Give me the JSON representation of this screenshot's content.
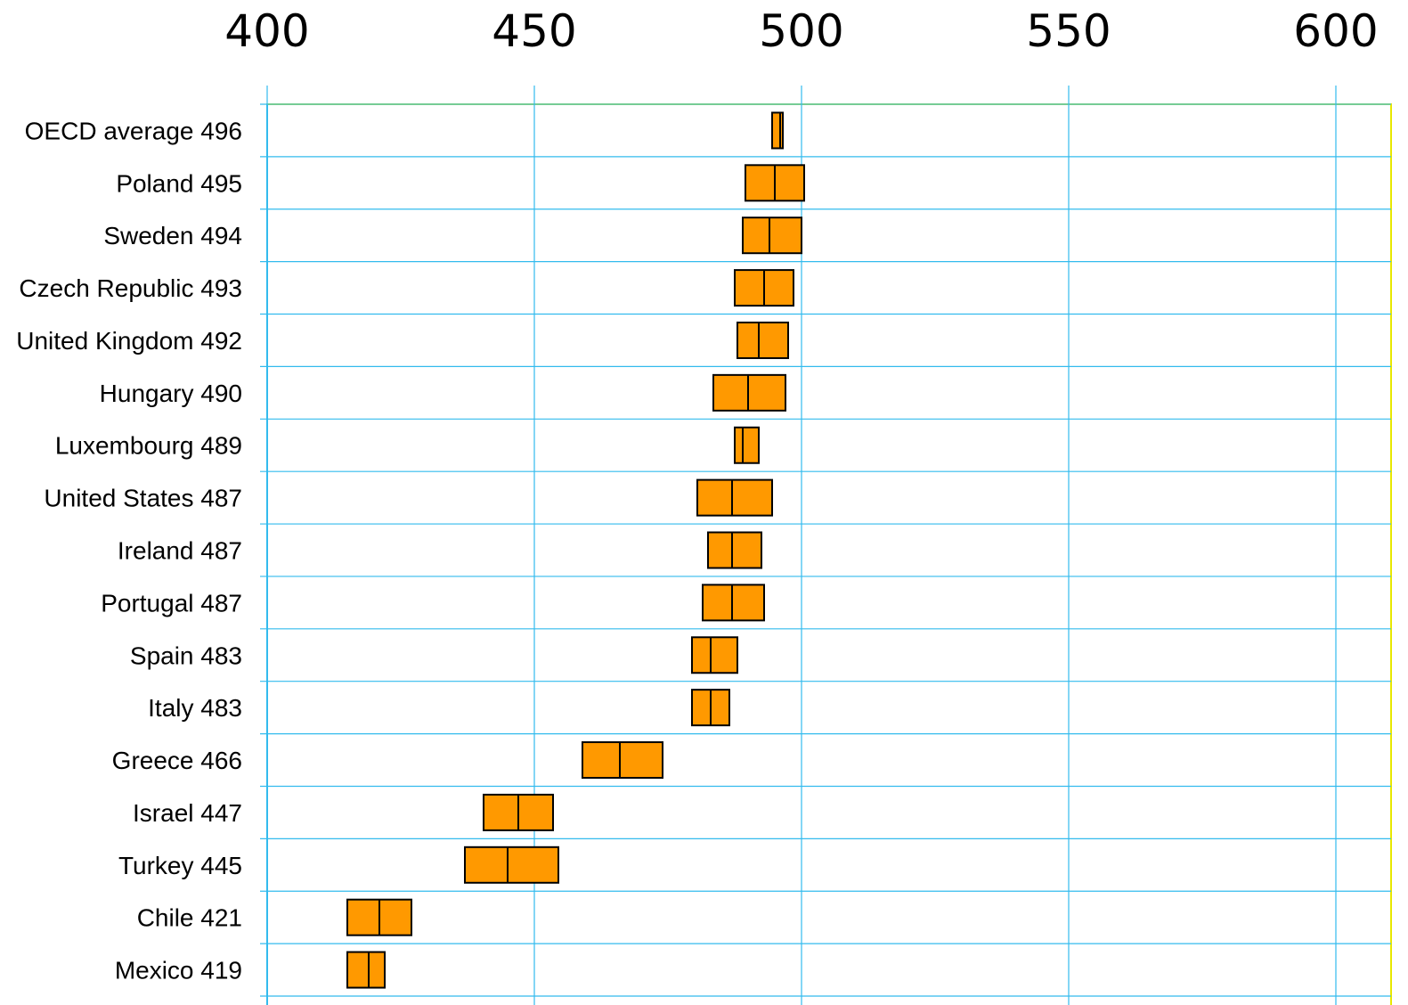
{
  "chart_data": {
    "type": "boxplot",
    "title": "",
    "xlabel": "",
    "ylabel": "",
    "xlim": [
      400,
      610
    ],
    "xticks": [
      400,
      450,
      500,
      550,
      600
    ],
    "grid": true,
    "categories": [
      "OECD average 496",
      "Poland 495",
      "Sweden 494",
      "Czech Republic 493",
      "United Kingdom 492",
      "Hungary 490",
      "Luxembourg 489",
      "United States 487",
      "Ireland 487",
      "Portugal 487",
      "Spain 483",
      "Italy 483",
      "Greece 466",
      "Israel 447",
      "Turkey 445",
      "Chile 421",
      "Mexico 419"
    ],
    "series": [
      {
        "mean": [
          496,
          495,
          494,
          493,
          492,
          490,
          489,
          487,
          487,
          487,
          483,
          483,
          466,
          447,
          445,
          421,
          419
        ],
        "low": [
          494.5,
          489.5,
          489,
          487.5,
          488,
          483.5,
          487.5,
          480.5,
          482.5,
          481.5,
          479.5,
          479.5,
          459,
          440.5,
          437,
          415,
          415
        ],
        "high": [
          496.5,
          500.5,
          500,
          498.5,
          497.5,
          497,
          492,
          494.5,
          492.5,
          493,
          488,
          486.5,
          474,
          453.5,
          454.5,
          427,
          422
        ]
      }
    ],
    "colors": {
      "box_fill": "#FF9900",
      "box_stroke": "#000000",
      "grid": "#33BBEE",
      "frame": "#E8E800"
    }
  }
}
